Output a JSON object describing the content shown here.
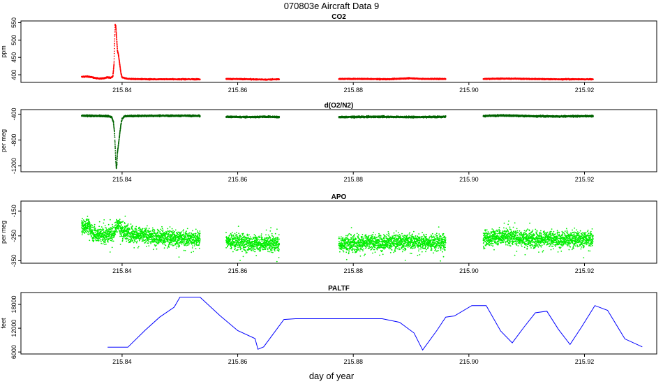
{
  "title": "070803e   Aircraft Data 9",
  "xlabel": "day of year",
  "chart_data": [
    {
      "type": "scatter",
      "title": "CO2",
      "ylabel": "ppm",
      "color": "#ff0000",
      "xlim": [
        215.8225,
        215.9325
      ],
      "ylim": [
        378,
        555
      ],
      "xticks": [
        215.84,
        215.86,
        215.88,
        215.9,
        215.92
      ],
      "xtick_labels": [
        "215.84",
        "215.86",
        "215.88",
        "215.90",
        "215.92"
      ],
      "yticks": [
        400,
        450,
        500,
        550
      ],
      "ytick_labels": [
        "400",
        "450",
        "500",
        "550"
      ],
      "segments": [
        {
          "points": [
            [
              215.833,
              394
            ],
            [
              215.834,
              395
            ],
            [
              215.835,
              392
            ],
            [
              215.836,
              389
            ],
            [
              215.837,
              390
            ],
            [
              215.8375,
              393
            ],
            [
              215.838,
              391
            ],
            [
              215.8384,
              395
            ],
            [
              215.8386,
              430
            ],
            [
              215.8387,
              490
            ],
            [
              215.8388,
              545
            ],
            [
              215.8389,
              540
            ],
            [
              215.839,
              520
            ],
            [
              215.8391,
              495
            ],
            [
              215.8392,
              470
            ],
            [
              215.8394,
              455
            ],
            [
              215.8396,
              430
            ],
            [
              215.8398,
              405
            ],
            [
              215.84,
              392
            ],
            [
              215.841,
              388
            ],
            [
              215.845,
              387
            ],
            [
              215.85,
              387
            ],
            [
              215.8535,
              387
            ]
          ]
        },
        {
          "points": [
            [
              215.858,
              388
            ],
            [
              215.862,
              387
            ],
            [
              215.865,
              386
            ],
            [
              215.8672,
              387
            ]
          ]
        },
        {
          "points": [
            [
              215.8775,
              388
            ],
            [
              215.882,
              388
            ],
            [
              215.886,
              387
            ],
            [
              215.8885,
              389
            ],
            [
              215.89,
              390
            ],
            [
              215.892,
              388
            ],
            [
              215.896,
              388
            ]
          ]
        },
        {
          "points": [
            [
              215.9025,
              388
            ],
            [
              215.906,
              389
            ],
            [
              215.91,
              388
            ],
            [
              215.915,
              387
            ],
            [
              215.92,
              387
            ],
            [
              215.9215,
              387
            ]
          ]
        }
      ]
    },
    {
      "type": "scatter",
      "title": "d(O2/N2)",
      "ylabel": "per meg",
      "color": "#006400",
      "xlim": [
        215.8225,
        215.9325
      ],
      "ylim": [
        -1290,
        -330
      ],
      "xticks": [
        215.84,
        215.86,
        215.88,
        215.9,
        215.92
      ],
      "xtick_labels": [
        "215.84",
        "215.86",
        "215.88",
        "215.90",
        "215.92"
      ],
      "yticks": [
        -400,
        -800,
        -1200
      ],
      "ytick_labels": [
        "-400",
        "-800",
        "-1200"
      ],
      "segments": [
        {
          "points": [
            [
              215.833,
              -425
            ],
            [
              215.836,
              -428
            ],
            [
              215.8375,
              -430
            ],
            [
              215.8382,
              -445
            ],
            [
              215.8385,
              -520
            ],
            [
              215.8387,
              -700
            ],
            [
              215.8388,
              -900
            ],
            [
              215.8389,
              -1100
            ],
            [
              215.839,
              -1240
            ],
            [
              215.8391,
              -1180
            ],
            [
              215.8392,
              -1000
            ],
            [
              215.8394,
              -850
            ],
            [
              215.8396,
              -700
            ],
            [
              215.8398,
              -560
            ],
            [
              215.84,
              -470
            ],
            [
              215.8405,
              -430
            ],
            [
              215.845,
              -425
            ],
            [
              215.85,
              -425
            ],
            [
              215.8535,
              -428
            ]
          ]
        },
        {
          "points": [
            [
              215.858,
              -440
            ],
            [
              215.862,
              -445
            ],
            [
              215.865,
              -440
            ],
            [
              215.8672,
              -445
            ]
          ]
        },
        {
          "points": [
            [
              215.8775,
              -445
            ],
            [
              215.885,
              -440
            ],
            [
              215.89,
              -445
            ],
            [
              215.896,
              -440
            ]
          ]
        },
        {
          "points": [
            [
              215.9025,
              -430
            ],
            [
              215.906,
              -420
            ],
            [
              215.91,
              -430
            ],
            [
              215.915,
              -435
            ],
            [
              215.9215,
              -430
            ]
          ]
        }
      ]
    },
    {
      "type": "scatter",
      "title": "APO",
      "ylabel": "per meg",
      "color": "#00ee00",
      "xlim": [
        215.8225,
        215.9325
      ],
      "ylim": [
        -360,
        -110
      ],
      "xticks": [
        215.84,
        215.86,
        215.88,
        215.9,
        215.92
      ],
      "xtick_labels": [
        "215.84",
        "215.86",
        "215.88",
        "215.90",
        "215.92"
      ],
      "yticks": [
        -150,
        -250,
        -350
      ],
      "ytick_labels": [
        "-150",
        "-250",
        "-350"
      ],
      "segments": [
        {
          "points": [
            [
              215.833,
              -215
            ],
            [
              215.834,
              -205
            ],
            [
              215.835,
              -240
            ],
            [
              215.837,
              -248
            ],
            [
              215.8385,
              -240
            ],
            [
              215.8392,
              -200
            ],
            [
              215.84,
              -230
            ],
            [
              215.842,
              -245
            ],
            [
              215.846,
              -255
            ],
            [
              215.85,
              -260
            ],
            [
              215.8535,
              -262
            ]
          ]
        },
        {
          "points": [
            [
              215.858,
              -268
            ],
            [
              215.862,
              -280
            ],
            [
              215.865,
              -278
            ],
            [
              215.8672,
              -282
            ]
          ]
        },
        {
          "points": [
            [
              215.8775,
              -282
            ],
            [
              215.882,
              -278
            ],
            [
              215.886,
              -276
            ],
            [
              215.89,
              -272
            ],
            [
              215.893,
              -276
            ],
            [
              215.896,
              -278
            ]
          ]
        },
        {
          "points": [
            [
              215.9025,
              -262
            ],
            [
              215.906,
              -250
            ],
            [
              215.91,
              -262
            ],
            [
              215.915,
              -264
            ],
            [
              215.9215,
              -262
            ]
          ]
        }
      ]
    },
    {
      "type": "line",
      "title": "PALTF",
      "ylabel": "feet",
      "color": "#0000ff",
      "xlim": [
        215.8225,
        215.9325
      ],
      "ylim": [
        5500,
        21000
      ],
      "xticks": [
        215.84,
        215.86,
        215.88,
        215.9,
        215.92
      ],
      "xtick_labels": [
        "215.84",
        "215.86",
        "215.88",
        "215.90",
        "215.92"
      ],
      "yticks": [
        6000,
        12000,
        18000
      ],
      "ytick_labels": [
        "6000",
        "12000",
        "18000"
      ],
      "x": [
        215.8375,
        215.841,
        215.844,
        215.8465,
        215.849,
        215.85,
        215.8535,
        215.857,
        215.86,
        215.863,
        215.8635,
        215.8645,
        215.868,
        215.87,
        215.875,
        215.88,
        215.885,
        215.888,
        215.8905,
        215.892,
        215.8945,
        215.896,
        215.8975,
        215.9005,
        215.903,
        215.9055,
        215.9075,
        215.9095,
        215.9115,
        215.9135,
        215.9155,
        215.9175,
        215.9195,
        215.9218,
        215.924,
        215.927,
        215.93
      ],
      "y": [
        7200,
        7200,
        11500,
        14800,
        17300,
        19800,
        19800,
        15100,
        11400,
        9400,
        6700,
        7300,
        14200,
        14400,
        14400,
        14400,
        14400,
        13500,
        10800,
        6500,
        11500,
        14800,
        15100,
        17700,
        17700,
        11300,
        8300,
        12200,
        15900,
        16300,
        11700,
        7900,
        12300,
        17700,
        16500,
        9300,
        7300
      ]
    }
  ]
}
